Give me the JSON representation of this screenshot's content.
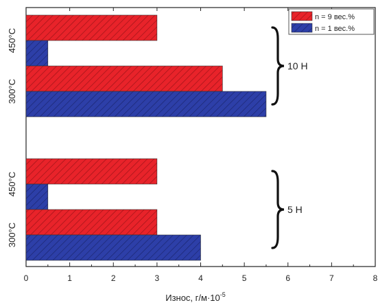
{
  "chart_data": {
    "type": "bar",
    "orientation": "horizontal",
    "xlabel_main": "Износ, г/м·10",
    "xlabel_exp": "-5",
    "xlim": [
      0,
      8
    ],
    "x_ticks": [
      "0",
      "1",
      "2",
      "3",
      "4",
      "5",
      "6",
      "7",
      "8"
    ],
    "grid": false,
    "legend_position": "top-right",
    "series": [
      {
        "name": "n = 9 вес.%",
        "color": "#e8232a",
        "pattern": "hatched"
      },
      {
        "name": "n = 1 вес.%",
        "color": "#2d3fa8",
        "pattern": "hatched"
      }
    ],
    "groups": [
      {
        "label": "10 Н",
        "categories": [
          {
            "label": "450°C",
            "values": [
              3.0,
              0.5
            ]
          },
          {
            "label": "300°C",
            "values": [
              4.5,
              5.5
            ]
          }
        ]
      },
      {
        "label": "5 Н",
        "categories": [
          {
            "label": "450°C",
            "values": [
              3.0,
              0.5
            ]
          },
          {
            "label": "300°C",
            "values": [
              3.0,
              4.0
            ]
          }
        ]
      }
    ]
  }
}
